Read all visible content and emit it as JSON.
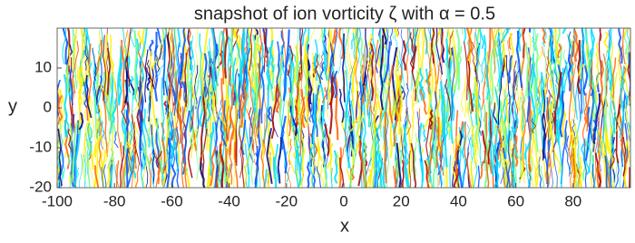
{
  "chart_data": {
    "type": "field",
    "title": "snapshot of ion vorticity ζ with α = 0.5",
    "xlabel": "x",
    "ylabel": "y",
    "xlim": [
      -100,
      100
    ],
    "xticks": [
      -100,
      -80,
      -60,
      -40,
      -20,
      0,
      20,
      40,
      60,
      80
    ],
    "ylim": [
      -20,
      20
    ],
    "yticks": [
      -20,
      -10,
      0,
      10
    ],
    "colormap": [
      "#00008f",
      "#0050ff",
      "#00dfff",
      "#70ff8f",
      "#ffef00",
      "#ff6000",
      "#a00000"
    ]
  }
}
